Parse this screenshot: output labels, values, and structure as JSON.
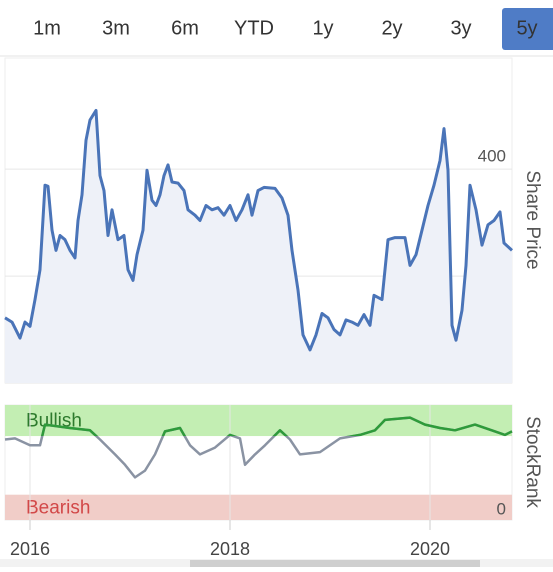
{
  "tabs": {
    "options": [
      "1m",
      "3m",
      "6m",
      "YTD",
      "1y",
      "2y",
      "3y",
      "5y"
    ],
    "active_index": 7,
    "active_color": "#4f7cc6"
  },
  "chart_data": [
    {
      "type": "area",
      "ylabel": "Share Price",
      "color": "#4a74b8",
      "fill": "#eef1f8",
      "x": [
        2015.75,
        2015.82,
        2015.9,
        2015.95,
        2016.0,
        2016.05,
        2016.1,
        2016.15,
        2016.18,
        2016.22,
        2016.26,
        2016.3,
        2016.35,
        2016.4,
        2016.45,
        2016.48,
        2016.52,
        2016.56,
        2016.6,
        2016.66,
        2016.7,
        2016.74,
        2016.78,
        2016.82,
        2016.88,
        2016.94,
        2016.98,
        2017.03,
        2017.07,
        2017.13,
        2017.17,
        2017.22,
        2017.26,
        2017.3,
        2017.34,
        2017.38,
        2017.42,
        2017.48,
        2017.54,
        2017.58,
        2017.65,
        2017.7,
        2017.76,
        2017.82,
        2017.88,
        2017.94,
        2018.0,
        2018.06,
        2018.12,
        2018.18,
        2018.22,
        2018.28,
        2018.34,
        2018.45,
        2018.52,
        2018.58,
        2018.62,
        2018.68,
        2018.73,
        2018.8,
        2018.86,
        2018.92,
        2018.98,
        2019.04,
        2019.1,
        2019.16,
        2019.22,
        2019.28,
        2019.34,
        2019.4,
        2019.44,
        2019.52,
        2019.58,
        2019.65,
        2019.75,
        2019.8,
        2019.86,
        2019.92,
        2019.98,
        2020.04,
        2020.1,
        2020.14,
        2020.18,
        2020.22,
        2020.26,
        2020.32,
        2020.36,
        2020.4,
        2020.46,
        2020.52,
        2020.58,
        2020.64,
        2020.7,
        2020.74,
        2020.82
      ],
      "values": [
        261,
        257,
        242,
        257,
        253,
        278,
        306,
        385,
        384,
        343,
        324,
        338,
        334,
        324,
        317,
        352,
        376,
        427,
        446,
        455,
        394,
        380,
        338,
        362,
        334,
        338,
        306,
        296,
        320,
        343,
        399,
        371,
        366,
        376,
        394,
        404,
        388,
        387,
        380,
        362,
        357,
        352,
        366,
        362,
        364,
        357,
        366,
        352,
        362,
        376,
        357,
        380,
        383,
        382,
        373,
        357,
        324,
        287,
        245,
        231,
        245,
        265,
        261,
        250,
        245,
        259,
        257,
        254,
        264,
        254,
        282,
        278,
        334,
        336,
        336,
        310,
        320,
        343,
        366,
        385,
        408,
        438,
        399,
        254,
        240,
        268,
        310,
        385,
        362,
        329,
        348,
        352,
        360,
        331,
        324
      ],
      "xlim": [
        2015.75,
        2020.82
      ],
      "ylim": [
        200,
        504
      ],
      "yticks": [
        200,
        300,
        400
      ],
      "grid": true
    },
    {
      "type": "line",
      "ylabel": "StockRank",
      "color": "#8a93a3",
      "highlight_color": "#2e9b3a",
      "x": [
        2015.75,
        2015.85,
        2016.0,
        2016.1,
        2016.15,
        2016.4,
        2016.6,
        2016.7,
        2016.85,
        2016.95,
        2017.05,
        2017.15,
        2017.25,
        2017.35,
        2017.5,
        2017.6,
        2017.7,
        2017.85,
        2018.0,
        2018.1,
        2018.15,
        2018.25,
        2018.35,
        2018.5,
        2018.6,
        2018.7,
        2018.9,
        2019.1,
        2019.3,
        2019.45,
        2019.55,
        2019.8,
        2019.95,
        2020.1,
        2020.25,
        2020.45,
        2020.65,
        2020.75,
        2020.82
      ],
      "values": [
        70,
        71,
        65,
        65,
        83,
        80,
        78,
        70,
        57,
        48,
        37,
        43,
        57,
        77,
        80,
        65,
        57,
        63,
        74,
        71,
        48,
        57,
        65,
        78,
        70,
        57,
        59,
        71,
        74,
        78,
        87,
        89,
        83,
        80,
        78,
        83,
        77,
        74,
        77
      ],
      "bands": [
        {
          "label": "Bullish",
          "from": 73,
          "to": 100,
          "color": "#c3eeb3",
          "text_color": "#2d7a2d"
        },
        {
          "label": "Bearish",
          "from": 0,
          "to": 22,
          "color": "#f1cdc8",
          "text_color": "#d24848"
        }
      ],
      "xlim": [
        2015.75,
        2020.82
      ],
      "ylim": [
        0,
        100
      ],
      "yticks": [
        0
      ],
      "xticks": [
        2016,
        2018,
        2020
      ],
      "grid": true
    }
  ]
}
